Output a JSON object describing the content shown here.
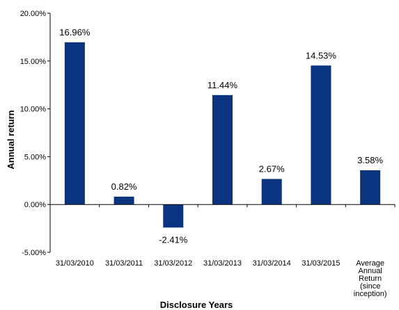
{
  "chart_data": {
    "type": "bar",
    "categories": [
      [
        "31/03/2010"
      ],
      [
        "31/03/2011"
      ],
      [
        "31/03/2012"
      ],
      [
        "31/03/2013"
      ],
      [
        "31/03/2014"
      ],
      [
        "31/03/2015"
      ],
      [
        "Average",
        "Annual",
        "Return",
        "(since",
        "inception)"
      ]
    ],
    "values": [
      16.96,
      0.82,
      -2.41,
      11.44,
      2.67,
      14.53,
      3.58
    ],
    "data_labels": [
      "16.96%",
      "0.82%",
      "-2.41%",
      "11.44%",
      "2.67%",
      "14.53%",
      "3.58%"
    ],
    "xlabel": "Disclosure Years",
    "ylabel": "Annual return",
    "ylim": [
      -5,
      20
    ],
    "yticks": [
      -5,
      0,
      5,
      10,
      15,
      20
    ],
    "ytick_labels": [
      "-5.00%",
      "0.00%",
      "5.00%",
      "10.00%",
      "15.00%",
      "20.00%"
    ],
    "bar_color": "#0a3480",
    "grid": false,
    "legend": "none"
  }
}
